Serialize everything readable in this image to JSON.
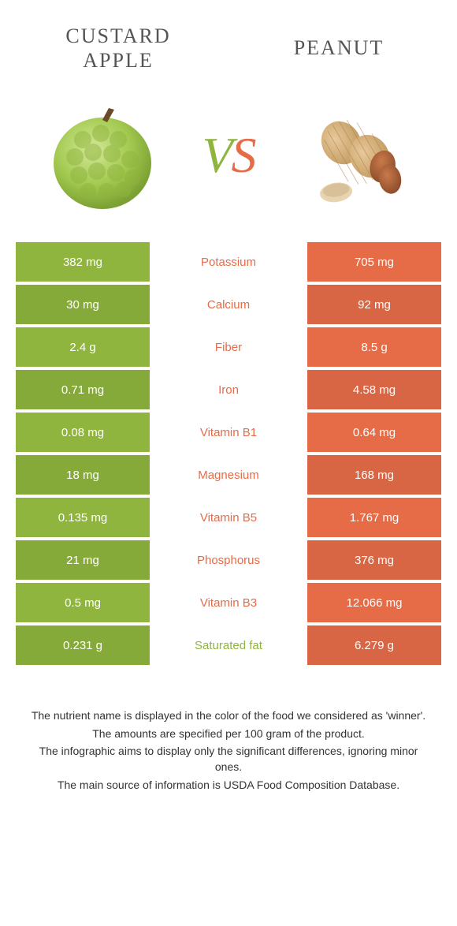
{
  "colors": {
    "green": "#8fb53e",
    "orange": "#e66b47",
    "row_alt_darken": 0.06
  },
  "food_left": {
    "title": "Custard\napple"
  },
  "food_right": {
    "title": "Peanut"
  },
  "vs": {
    "v": "V",
    "s": "S"
  },
  "rows": [
    {
      "left": "382 mg",
      "label": "Potassium",
      "right": "705 mg",
      "winner": "right"
    },
    {
      "left": "30 mg",
      "label": "Calcium",
      "right": "92 mg",
      "winner": "right"
    },
    {
      "left": "2.4 g",
      "label": "Fiber",
      "right": "8.5 g",
      "winner": "right"
    },
    {
      "left": "0.71 mg",
      "label": "Iron",
      "right": "4.58 mg",
      "winner": "right"
    },
    {
      "left": "0.08 mg",
      "label": "Vitamin B1",
      "right": "0.64 mg",
      "winner": "right"
    },
    {
      "left": "18 mg",
      "label": "Magnesium",
      "right": "168 mg",
      "winner": "right"
    },
    {
      "left": "0.135 mg",
      "label": "Vitamin B5",
      "right": "1.767 mg",
      "winner": "right"
    },
    {
      "left": "21 mg",
      "label": "Phosphorus",
      "right": "376 mg",
      "winner": "right"
    },
    {
      "left": "0.5 mg",
      "label": "Vitamin B3",
      "right": "12.066 mg",
      "winner": "right"
    },
    {
      "left": "0.231 g",
      "label": "Saturated fat",
      "right": "6.279 g",
      "winner": "left"
    }
  ],
  "footnotes": [
    "The nutrient name is displayed in the color of the food we considered as 'winner'.",
    "The amounts are specified per 100 gram of the product.",
    "The infographic aims to display only the significant differences, ignoring minor ones.",
    "The main source of information is USDA Food Composition Database."
  ]
}
